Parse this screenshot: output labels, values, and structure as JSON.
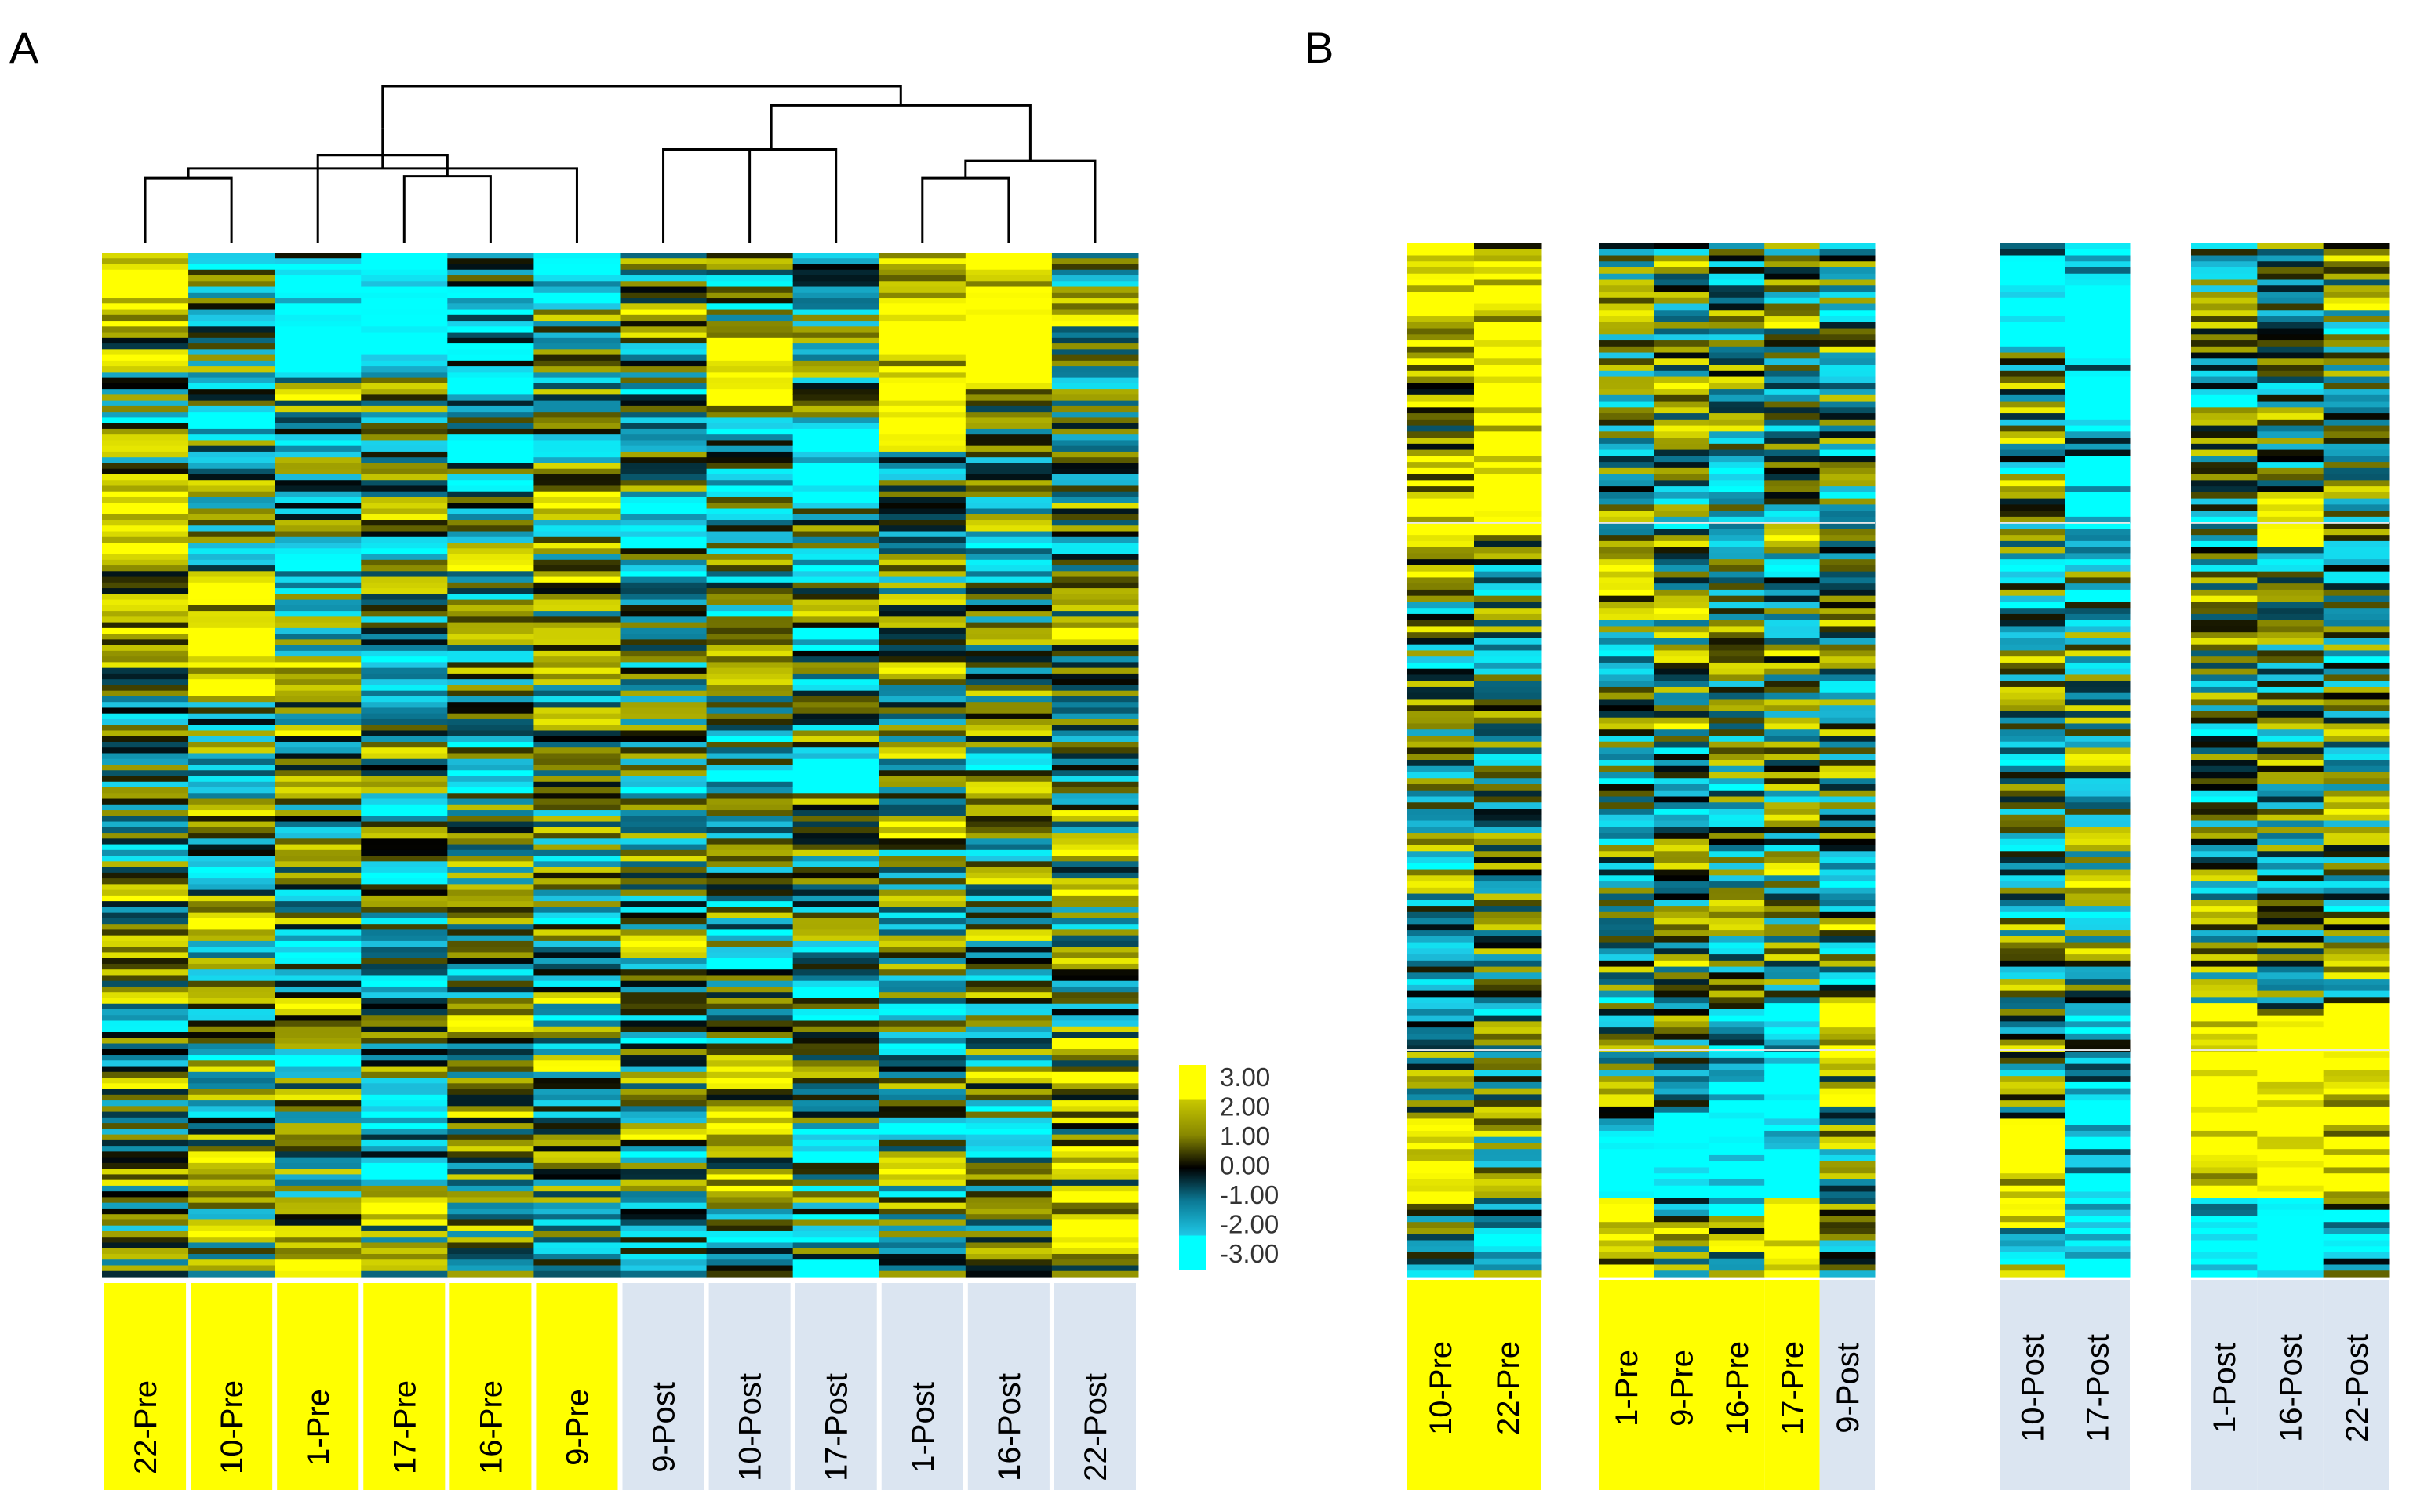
{
  "panels": [
    {
      "label": "A"
    },
    {
      "label": "B"
    }
  ],
  "colors": {
    "pre": "#ffff00",
    "post": "#dbe5f1",
    "scale": [
      "#00ffff",
      "#1ec8e6",
      "#0b7894",
      "#000000",
      "#888800",
      "#c8c800",
      "#ffff00"
    ]
  },
  "chart_data": [
    {
      "type": "heatmap",
      "panel": "A",
      "title": "",
      "clustering": "hierarchical (columns)",
      "columns": [
        {
          "label": "22-Pre",
          "group": "Pre"
        },
        {
          "label": "10-Pre",
          "group": "Pre"
        },
        {
          "label": "1-Pre",
          "group": "Pre"
        },
        {
          "label": "17-Pre",
          "group": "Pre"
        },
        {
          "label": "16-Pre",
          "group": "Pre"
        },
        {
          "label": "9-Pre",
          "group": "Pre"
        },
        {
          "label": "9-Post",
          "group": "Post"
        },
        {
          "label": "10-Post",
          "group": "Post"
        },
        {
          "label": "17-Post",
          "group": "Post"
        },
        {
          "label": "1-Post",
          "group": "Post"
        },
        {
          "label": "16-Post",
          "group": "Post"
        },
        {
          "label": "22-Post",
          "group": "Post"
        }
      ],
      "colorscale": {
        "min": -3.0,
        "max": 3.0,
        "ticks": [
          "3.00",
          "2.00",
          "1.00",
          "0.00",
          "-1.00",
          "-2.00",
          "-3.00"
        ]
      },
      "dendrogram": [
        [
          0,
          1
        ],
        [
          3,
          4
        ],
        [
          12,
          5
        ],
        [
          2,
          13
        ],
        [
          14,
          15
        ],
        [
          6,
          7
        ],
        [
          17,
          8
        ],
        [
          9,
          10
        ],
        [
          19,
          11
        ],
        [
          18,
          20
        ],
        [
          16,
          21
        ]
      ],
      "dendrogram_heights": [
        0.34,
        0.35,
        0.39,
        0.46,
        0.6,
        0.49,
        0.49,
        0.34,
        0.43,
        0.72,
        0.82
      ]
    },
    {
      "type": "heatmap",
      "panel": "B",
      "title": "",
      "groups": [
        {
          "columns": [
            {
              "label": "10-Pre",
              "group": "Pre"
            },
            {
              "label": "22-Pre",
              "group": "Pre"
            }
          ]
        },
        {
          "columns": [
            {
              "label": "1-Pre",
              "group": "Pre"
            },
            {
              "label": "9-Pre",
              "group": "Pre"
            },
            {
              "label": "16-Pre",
              "group": "Pre"
            },
            {
              "label": "17-Pre",
              "group": "Pre"
            },
            {
              "label": "9-Post",
              "group": "Post"
            }
          ]
        },
        {
          "columns": [
            {
              "label": "10-Post",
              "group": "Post"
            },
            {
              "label": "17-Post",
              "group": "Post"
            }
          ]
        },
        {
          "columns": [
            {
              "label": "1-Post",
              "group": "Post"
            },
            {
              "label": "16-Post",
              "group": "Post"
            },
            {
              "label": "22-Post",
              "group": "Post"
            }
          ]
        }
      ]
    }
  ]
}
